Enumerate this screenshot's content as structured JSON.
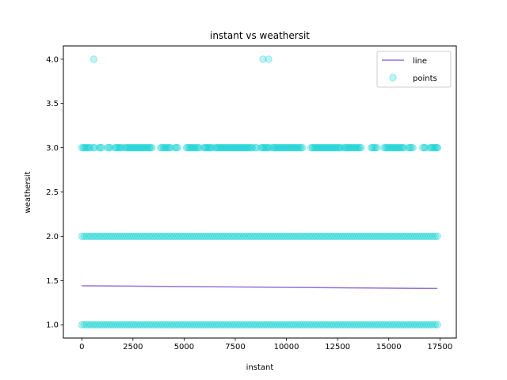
{
  "chart_data": {
    "type": "scatter",
    "title": "instant vs weathersit",
    "xlabel": "instant",
    "ylabel": "weathersit",
    "xlim": [
      -900,
      18300
    ],
    "ylim": [
      0.85,
      4.15
    ],
    "xticks": [
      0,
      2500,
      5000,
      7500,
      10000,
      12500,
      15000,
      17500
    ],
    "yticks": [
      1.0,
      1.5,
      2.0,
      2.5,
      3.0,
      3.5,
      4.0
    ],
    "grid": false,
    "legend_position": "top-right",
    "colors": {
      "line": "#9370db",
      "points": "#00ced1",
      "points_alpha": 0.25
    },
    "series": [
      {
        "name": "line",
        "kind": "line",
        "x": [
          1,
          17379
        ],
        "y": [
          1.44,
          1.41
        ]
      },
      {
        "name": "points",
        "kind": "scatter",
        "x_range": [
          1,
          17379
        ],
        "levels": [
          1,
          2,
          3
        ],
        "level3_gaps": [
          [
            450,
            520
          ],
          [
            700,
            780
          ],
          [
            1050,
            1200
          ],
          [
            1450,
            1560
          ],
          [
            2000,
            2080
          ],
          [
            3500,
            3850
          ],
          [
            4400,
            4500
          ],
          [
            4750,
            5100
          ],
          [
            5800,
            5900
          ],
          [
            6400,
            6500
          ],
          [
            8350,
            8450
          ],
          [
            8600,
            8700
          ],
          [
            9200,
            9300
          ],
          [
            10800,
            11200
          ],
          [
            12700,
            12800
          ],
          [
            13700,
            14100
          ],
          [
            14450,
            14750
          ],
          [
            15800,
            15900
          ],
          [
            16200,
            16600
          ],
          [
            16850,
            16950
          ]
        ],
        "outliers": [
          {
            "x": 585,
            "y": 4.0
          },
          {
            "x": 8855,
            "y": 4.0
          },
          {
            "x": 9125,
            "y": 4.0
          }
        ]
      }
    ]
  }
}
